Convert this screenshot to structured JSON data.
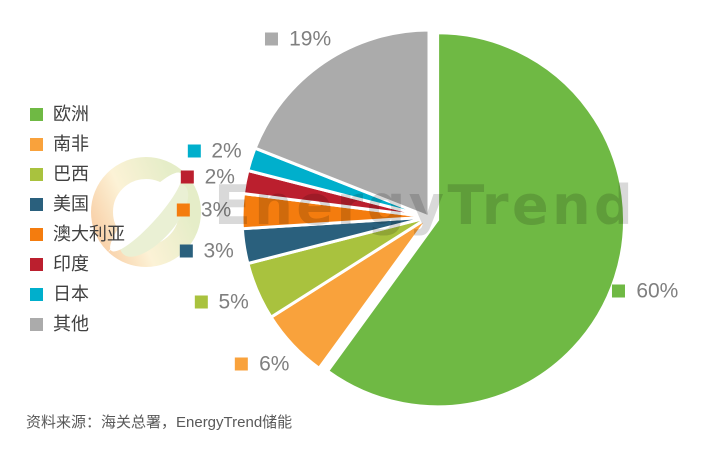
{
  "chart_data": {
    "type": "pie",
    "title": "",
    "start_angle_deg": 0,
    "direction": "clockwise",
    "legend_position": "left",
    "labels_shown": "percent-outside-with-swatch",
    "slices": [
      {
        "label": "欧洲",
        "value": 60,
        "pct_label": "60%",
        "color": "#6FB944",
        "exploded": true
      },
      {
        "label": "南非",
        "value": 6,
        "pct_label": "6%",
        "color": "#F9A23C",
        "exploded": false
      },
      {
        "label": "巴西",
        "value": 5,
        "pct_label": "5%",
        "color": "#A9C23E",
        "exploded": false
      },
      {
        "label": "美国",
        "value": 3,
        "pct_label": "3%",
        "color": "#2A607D",
        "exploded": false
      },
      {
        "label": "澳大利亚",
        "value": 3,
        "pct_label": "3%",
        "color": "#F47C0E",
        "exploded": false
      },
      {
        "label": "印度",
        "value": 2,
        "pct_label": "2%",
        "color": "#BB1F2E",
        "exploded": false
      },
      {
        "label": "日本",
        "value": 2,
        "pct_label": "2%",
        "color": "#00AFCC",
        "exploded": false
      },
      {
        "label": "其他",
        "value": 19,
        "pct_label": "19%",
        "color": "#ABABAB",
        "exploded": false
      }
    ]
  },
  "watermark": {
    "text": "EnergyTrend"
  },
  "footer": {
    "source_text": "资料来源：海关总署，EnergyTrend储能"
  },
  "colors": {
    "background": "#FFFFFF",
    "slice_border": "#FFFFFF",
    "percent_label_text": "#7F7F7F",
    "legend_text": "#404040",
    "footer_text": "#595959",
    "watermark_text": "#D9D9D9"
  }
}
